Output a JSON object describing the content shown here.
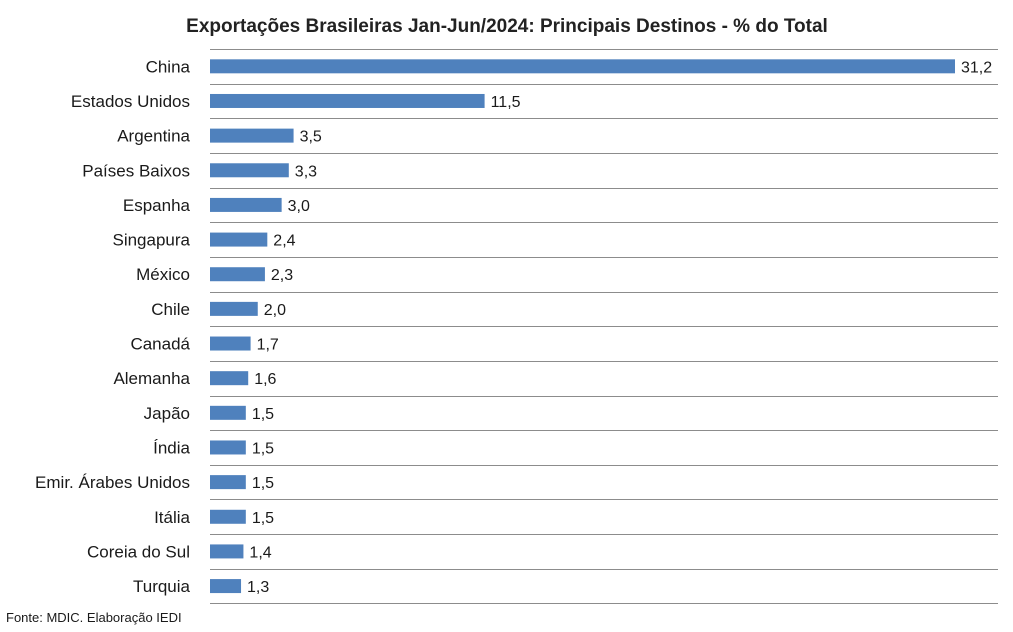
{
  "chart_data": {
    "type": "bar",
    "orientation": "horizontal",
    "title": "Exportações Brasileiras Jan-Jun/2024: Principais Destinos - % do Total",
    "categories": [
      "China",
      "Estados Unidos",
      "Argentina",
      "Países Baixos",
      "Espanha",
      "Singapura",
      "México",
      "Chile",
      "Canadá",
      "Alemanha",
      "Japão",
      "Índia",
      "Emir. Árabes Unidos",
      "Itália",
      "Coreia do Sul",
      "Turquia"
    ],
    "values": [
      31.2,
      11.5,
      3.5,
      3.3,
      3.0,
      2.4,
      2.3,
      2.0,
      1.7,
      1.6,
      1.5,
      1.5,
      1.5,
      1.5,
      1.4,
      1.3
    ],
    "value_labels": [
      "31,2",
      "11,5",
      "3,5",
      "3,3",
      "3,0",
      "2,4",
      "2,3",
      "2,0",
      "1,7",
      "1,6",
      "1,5",
      "1,5",
      "1,5",
      "1,5",
      "1,4",
      "1,3"
    ],
    "xlim": [
      0,
      31.2
    ],
    "grid": "horizontal separators between categories",
    "legend": "none",
    "bar_color": "#4f81bd"
  },
  "source_note": "Fonte: MDIC. Elaboração IEDI"
}
